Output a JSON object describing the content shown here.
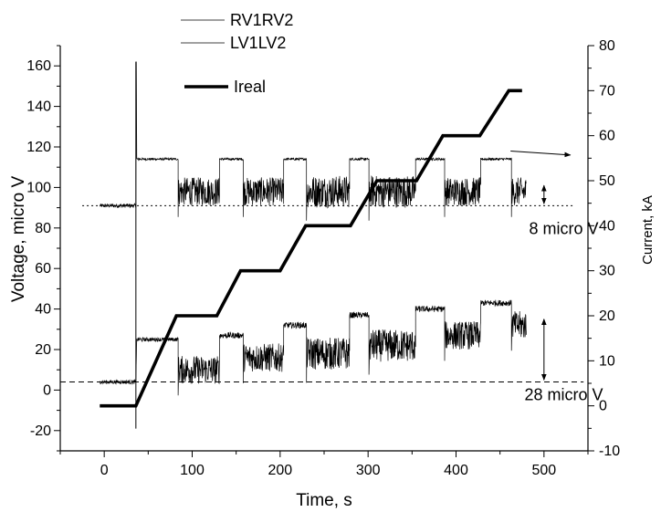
{
  "chart_data": {
    "type": "line",
    "title": "",
    "xlabel": "Time, s",
    "ylabel_left": "Voltage, micro V",
    "ylabel_right": "Current, kA",
    "xlim": [
      -50,
      550
    ],
    "ylim_left": [
      -30,
      170
    ],
    "ylim_right": [
      -10,
      80
    ],
    "x_ticks": [
      0,
      100,
      200,
      300,
      400,
      500
    ],
    "y_left_ticks": [
      -20,
      0,
      20,
      40,
      60,
      80,
      100,
      120,
      140,
      160
    ],
    "y_right_ticks": [
      -10,
      0,
      10,
      20,
      30,
      40,
      50,
      60,
      70,
      80
    ],
    "legend": [
      {
        "name": "RV1RV2",
        "style": "thin"
      },
      {
        "name": "LV1LV2",
        "style": "thin"
      },
      {
        "name": "Ireal",
        "style": "thick"
      }
    ],
    "series": [
      {
        "name": "RV1RV2",
        "axis": "left",
        "step_segments": [
          {
            "x": [
              -5,
              36
            ],
            "level": 91,
            "noise": 1
          },
          {
            "x": [
              36,
              36.5
            ],
            "level": 162,
            "noise": 0
          },
          {
            "x": [
              37,
              84
            ],
            "level": 114,
            "noise": 0.6
          },
          {
            "x": [
              84,
              131
            ],
            "level": 98,
            "noise": 7
          },
          {
            "x": [
              131,
              158
            ],
            "level": 114,
            "noise": 0.6
          },
          {
            "x": [
              158,
              204
            ],
            "level": 98,
            "noise": 7
          },
          {
            "x": [
              204,
              230
            ],
            "level": 114,
            "noise": 0.6
          },
          {
            "x": [
              230,
              279
            ],
            "level": 98,
            "noise": 8
          },
          {
            "x": [
              279,
              301
            ],
            "level": 114,
            "noise": 0.6
          },
          {
            "x": [
              301,
              354
            ],
            "level": 98,
            "noise": 8
          },
          {
            "x": [
              354,
              387
            ],
            "level": 114,
            "noise": 0.6
          },
          {
            "x": [
              387,
              428
            ],
            "level": 98,
            "noise": 7
          },
          {
            "x": [
              428,
              463
            ],
            "level": 114,
            "noise": 0.6
          },
          {
            "x": [
              463,
              480
            ],
            "level": 98,
            "noise": 7
          }
        ]
      },
      {
        "name": "LV1LV2",
        "axis": "left",
        "step_segments": [
          {
            "x": [
              -5,
              36
            ],
            "level": 4,
            "noise": 1
          },
          {
            "x": [
              37,
              84
            ],
            "level": 25,
            "noise": 1
          },
          {
            "x": [
              84,
              131
            ],
            "level": 10,
            "noise": 7
          },
          {
            "x": [
              131,
              158
            ],
            "level": 27,
            "noise": 1.5
          },
          {
            "x": [
              158,
              204
            ],
            "level": 16,
            "noise": 7
          },
          {
            "x": [
              204,
              230
            ],
            "level": 32,
            "noise": 1.5
          },
          {
            "x": [
              230,
              279
            ],
            "level": 18,
            "noise": 8
          },
          {
            "x": [
              279,
              301
            ],
            "level": 37,
            "noise": 1.5
          },
          {
            "x": [
              301,
              354
            ],
            "level": 22,
            "noise": 8
          },
          {
            "x": [
              354,
              387
            ],
            "level": 40,
            "noise": 1.5
          },
          {
            "x": [
              387,
              428
            ],
            "level": 27,
            "noise": 7
          },
          {
            "x": [
              428,
              463
            ],
            "level": 43,
            "noise": 1.5
          },
          {
            "x": [
              463,
              480
            ],
            "level": 32,
            "noise": 7
          }
        ]
      },
      {
        "name": "Ireal",
        "axis": "right",
        "x": [
          -5,
          36,
          82,
          128,
          155,
          200,
          229,
          280,
          310,
          355,
          385,
          427,
          460,
          475
        ],
        "y": [
          0,
          0,
          20,
          20,
          30,
          30,
          40,
          40,
          50,
          50,
          60,
          60,
          70,
          70
        ]
      }
    ],
    "reference_lines": [
      {
        "axis": "left",
        "y": 91,
        "style": "dotted",
        "x": [
          -25,
          535
        ]
      },
      {
        "axis": "left",
        "y": 4,
        "style": "dashed",
        "x": [
          -50,
          545
        ]
      }
    ],
    "annotations": [
      {
        "text": "8 micro V",
        "x": 508,
        "y": 77,
        "axis": "left"
      },
      {
        "text": "28 micro V",
        "x": 508,
        "y": -5,
        "axis": "left"
      }
    ],
    "annotation_arrows": [
      {
        "type": "pointer",
        "from": [
          462,
          118
        ],
        "to": [
          530,
          116
        ],
        "axis": "left"
      },
      {
        "type": "double",
        "x": 500,
        "y": [
          92,
          101
        ],
        "axis": "left"
      },
      {
        "type": "double",
        "x": 500,
        "y": [
          5,
          35
        ],
        "axis": "left"
      }
    ],
    "grid": false,
    "legend_position": "top-left"
  }
}
